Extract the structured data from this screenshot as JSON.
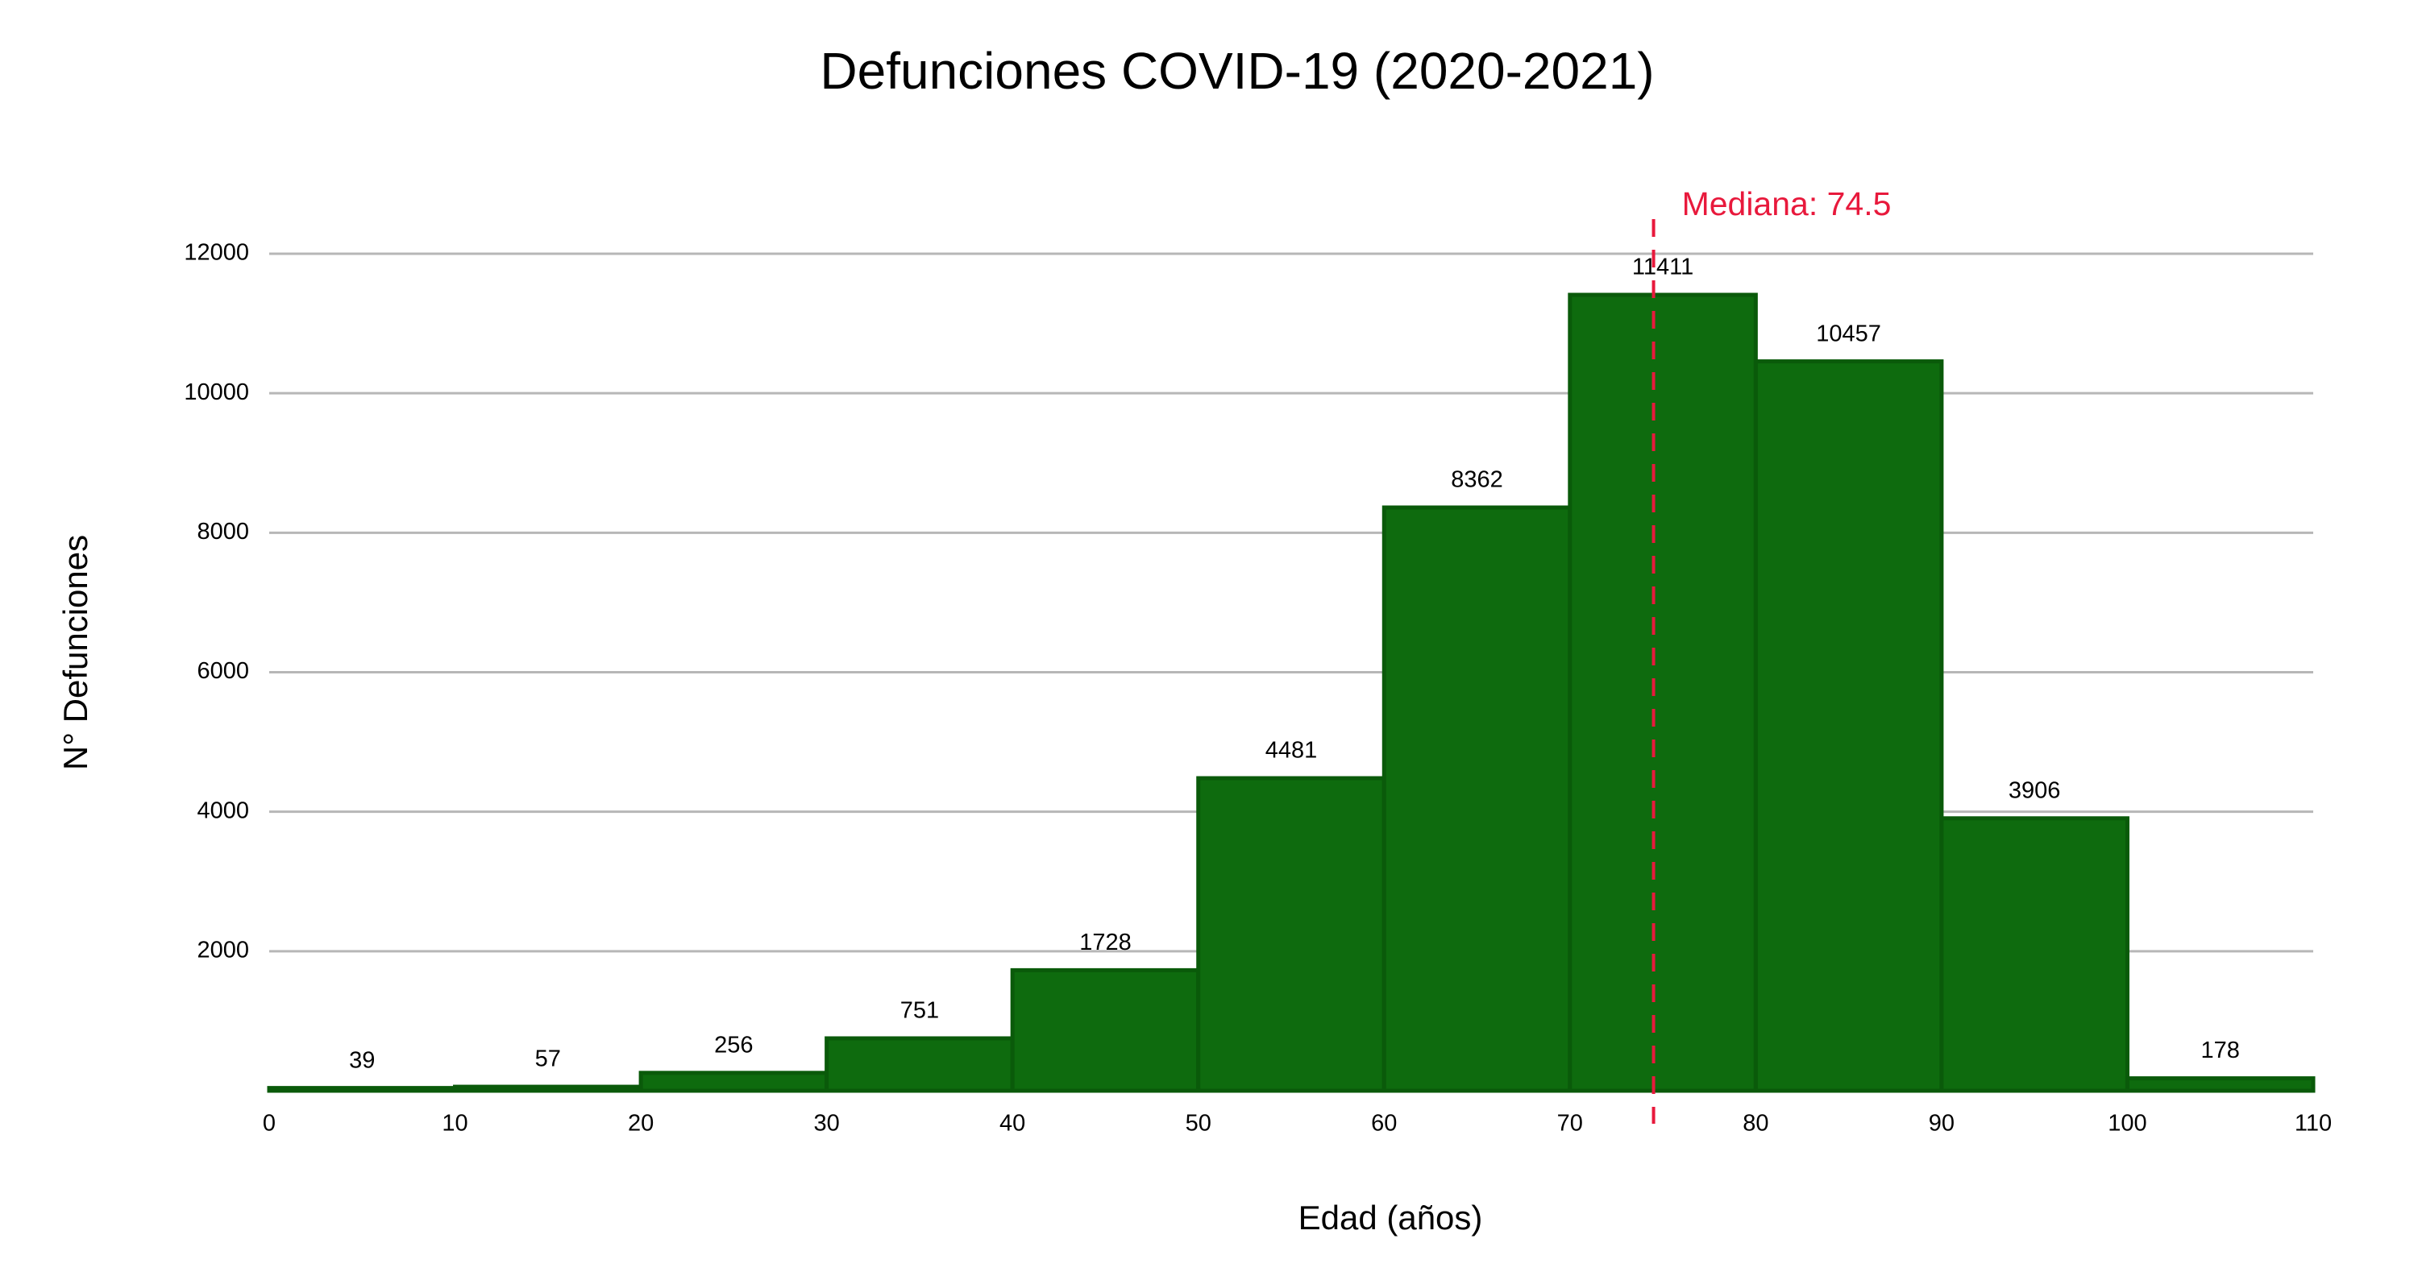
{
  "chart_data": {
    "type": "histogram",
    "title": "Defunciones COVID-19 (2020-2021)",
    "x_label": "Edad (años)",
    "y_label": "N° Defunciones",
    "bins": [
      0,
      10,
      20,
      30,
      40,
      50,
      60,
      70,
      80,
      90,
      100,
      110
    ],
    "values": [
      39,
      57,
      256,
      751,
      1728,
      4481,
      8362,
      11411,
      10457,
      3906,
      178
    ],
    "color": "#0e6b0e",
    "xlim": [
      0,
      110
    ],
    "xticks": [
      0,
      10,
      20,
      30,
      40,
      50,
      60,
      70,
      80,
      90,
      100,
      110
    ],
    "ylim": [
      0,
      12000
    ],
    "yticks": [
      2000,
      4000,
      6000,
      8000,
      10000,
      12000
    ],
    "grid": true,
    "median": 74.5,
    "median_label": "Mediana: 74.5",
    "median_color": "#e8193c"
  }
}
